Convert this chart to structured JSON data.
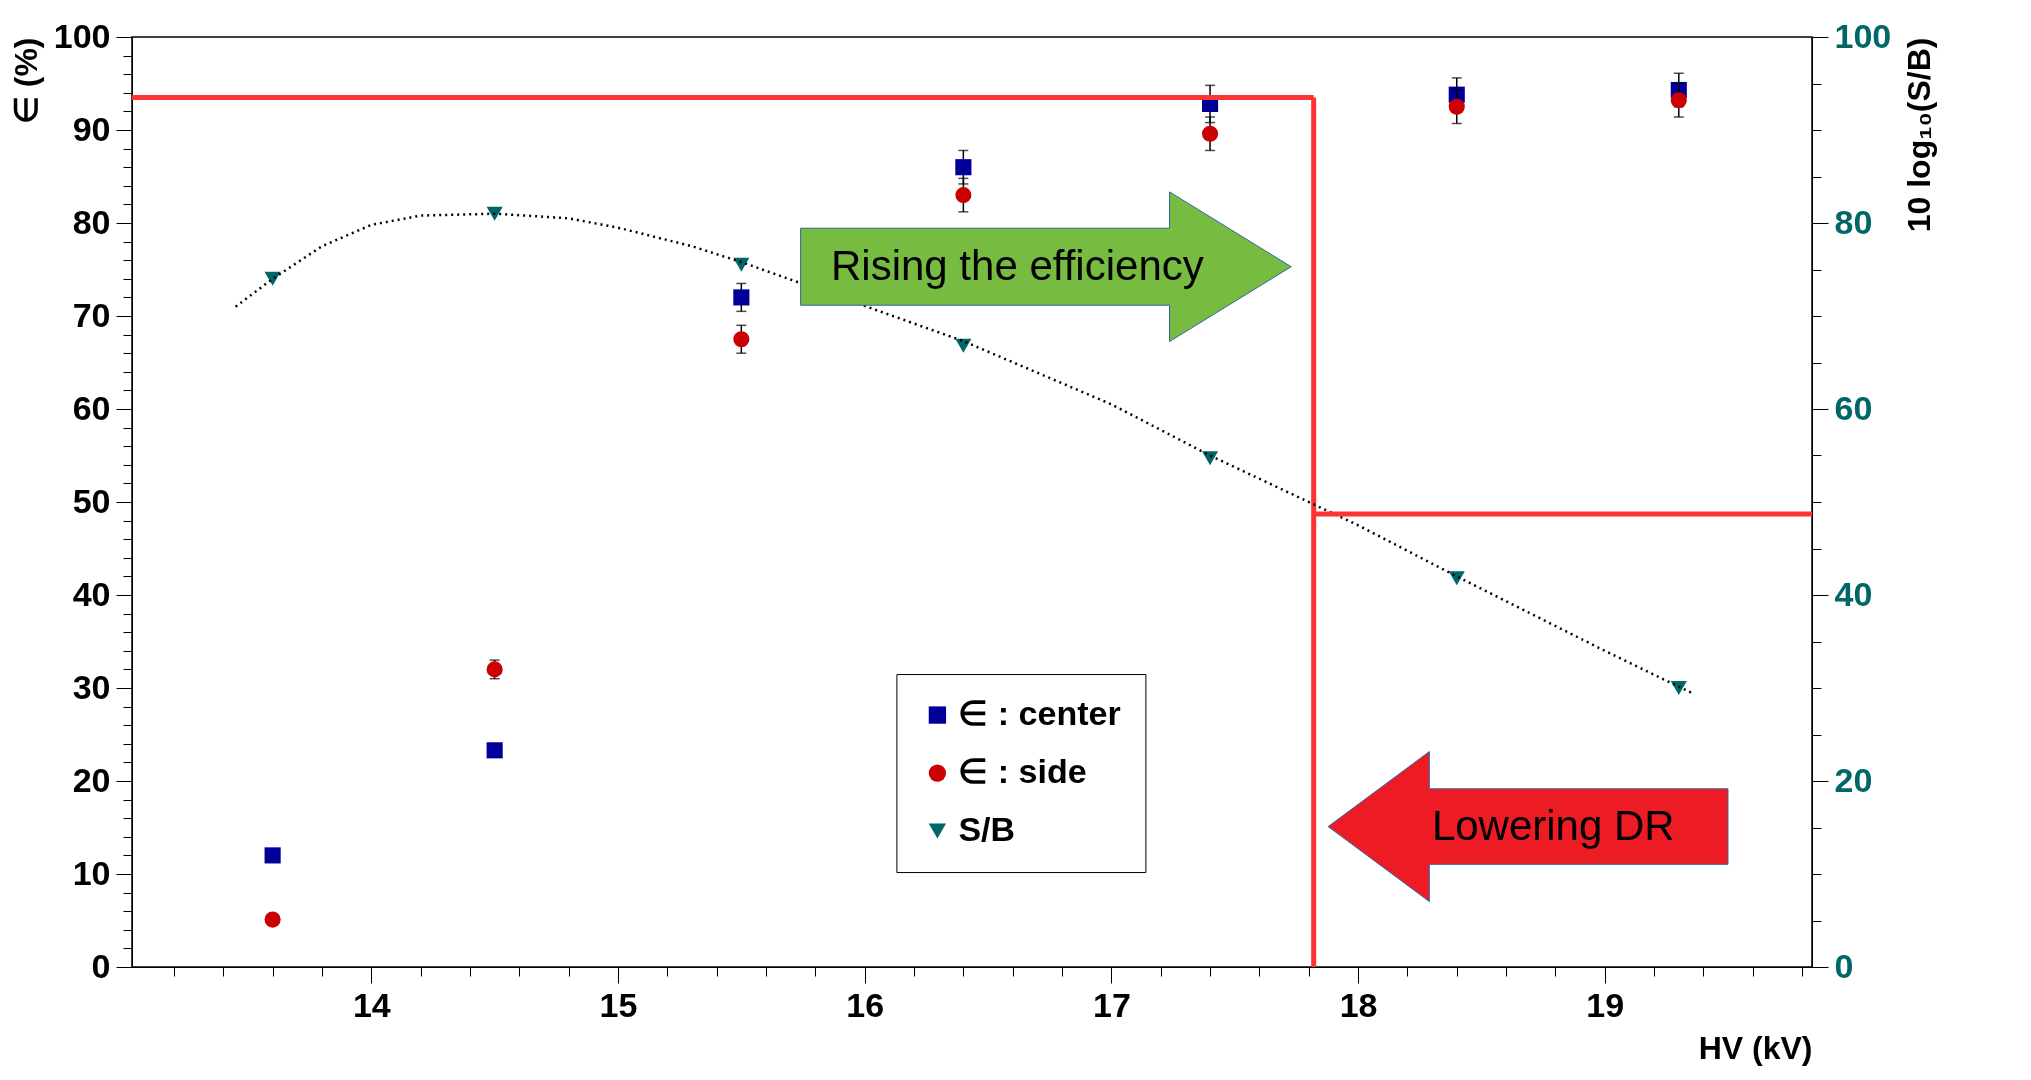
{
  "chart_data": {
    "type": "scatter",
    "xlabel": "HV (kV)",
    "ylabel": "∈ (%)",
    "y2label": "10 log₁₀(S/B)",
    "x": [
      13.6,
      14.5,
      15.5,
      16.4,
      17.4,
      18.4,
      19.3
    ],
    "series": [
      {
        "name": "∈ : center",
        "color": "#000099",
        "marker": "square",
        "values": [
          12,
          23.3,
          72,
          86,
          92.8,
          93.8,
          94.3
        ],
        "errors": [
          null,
          null,
          1.5,
          1.8,
          2,
          1.8,
          1.8
        ]
      },
      {
        "name": "∈ : side",
        "color": "#cc0000",
        "marker": "circle",
        "values": [
          5.1,
          32,
          67.5,
          83,
          89.6,
          92.5,
          93.2
        ],
        "errors": [
          null,
          1,
          1.5,
          1.8,
          1.8,
          1.8,
          1.8
        ]
      },
      {
        "name": "S/B",
        "axis": "y2",
        "color": "#006666",
        "marker": "triangle",
        "values": [
          74,
          81,
          75.5,
          66.8,
          54.7,
          41.8,
          30
        ]
      },
      {
        "type": "line",
        "axis": "y2",
        "color": "#000000",
        "line_style": "dotted",
        "marker": "none",
        "x": [
          13.45,
          13.6,
          13.8,
          14.0,
          14.2,
          14.5,
          14.8,
          15.0,
          15.3,
          15.5,
          16.0,
          16.4,
          17.0,
          17.4,
          18.0,
          18.4,
          19.0,
          19.35
        ],
        "values": [
          71,
          74,
          77.5,
          79.8,
          80.8,
          81,
          80.5,
          79.5,
          77.5,
          75.8,
          null,
          67.3,
          60.5,
          55,
          47.5,
          42,
          34,
          29.5
        ]
      }
    ],
    "xlim": [
      13.03,
      19.84
    ],
    "ylim": [
      0,
      100
    ],
    "y2lim": [
      0,
      100
    ],
    "xticks": [
      {
        "value": 13.2,
        "label": null
      },
      {
        "value": 13.4,
        "label": null
      },
      {
        "value": 13.6,
        "label": null
      },
      {
        "value": 13.8,
        "label": null
      },
      14,
      {
        "value": 14.2,
        "label": null
      },
      {
        "value": 14.4,
        "label": null
      },
      {
        "value": 14.6,
        "label": null
      },
      {
        "value": 14.8,
        "label": null
      },
      15,
      {
        "value": 15.2,
        "label": null
      },
      {
        "value": 15.4,
        "label": null
      },
      {
        "value": 15.6,
        "label": null
      },
      {
        "value": 15.8,
        "label": null
      },
      16,
      {
        "value": 16.2,
        "label": null
      },
      {
        "value": 16.4,
        "label": null
      },
      {
        "value": 16.6,
        "label": null
      },
      {
        "value": 16.8,
        "label": null
      },
      17,
      {
        "value": 17.2,
        "label": null
      },
      {
        "value": 17.4,
        "label": null
      },
      {
        "value": 17.6,
        "label": null
      },
      {
        "value": 17.8,
        "label": null
      },
      18,
      {
        "value": 18.2,
        "label": null
      },
      {
        "value": 18.4,
        "label": null
      },
      {
        "value": 18.6,
        "label": null
      },
      {
        "value": 18.8,
        "label": null
      },
      19,
      {
        "value": 19.2,
        "label": null
      },
      {
        "value": 19.4,
        "label": null
      },
      {
        "value": 19.6,
        "label": null
      },
      {
        "value": 19.8,
        "label": null
      }
    ],
    "yticks": [
      0,
      {
        "value": 2,
        "label": null
      },
      {
        "value": 4,
        "label": null
      },
      {
        "value": 6,
        "label": null
      },
      {
        "value": 8,
        "label": null
      },
      10,
      {
        "value": 12,
        "label": null
      },
      {
        "value": 14,
        "label": null
      },
      {
        "value": 16,
        "label": null
      },
      {
        "value": 18,
        "label": null
      },
      20,
      {
        "value": 22,
        "label": null
      },
      {
        "value": 24,
        "label": null
      },
      {
        "value": 26,
        "label": null
      },
      {
        "value": 28,
        "label": null
      },
      30,
      {
        "value": 32,
        "label": null
      },
      {
        "value": 34,
        "label": null
      },
      {
        "value": 36,
        "label": null
      },
      {
        "value": 38,
        "label": null
      },
      40,
      {
        "value": 42,
        "label": null
      },
      {
        "value": 44,
        "label": null
      },
      {
        "value": 46,
        "label": null
      },
      {
        "value": 48,
        "label": null
      },
      50,
      {
        "value": 52,
        "label": null
      },
      {
        "value": 54,
        "label": null
      },
      {
        "value": 56,
        "label": null
      },
      {
        "value": 58,
        "label": null
      },
      60,
      {
        "value": 62,
        "label": null
      },
      {
        "value": 64,
        "label": null
      },
      {
        "value": 66,
        "label": null
      },
      {
        "value": 68,
        "label": null
      },
      70,
      {
        "value": 72,
        "label": null
      },
      {
        "value": 74,
        "label": null
      },
      {
        "value": 76,
        "label": null
      },
      {
        "value": 78,
        "label": null
      },
      80,
      {
        "value": 82,
        "label": null
      },
      {
        "value": 84,
        "label": null
      },
      {
        "value": 86,
        "label": null
      },
      {
        "value": 88,
        "label": null
      },
      90,
      {
        "value": 92,
        "label": null
      },
      {
        "value": 94,
        "label": null
      },
      {
        "value": 96,
        "label": null
      },
      {
        "value": 98,
        "label": null
      },
      100
    ],
    "y2ticks": [
      0,
      {
        "value": 5,
        "label": null
      },
      {
        "value": 10,
        "label": null
      },
      {
        "value": 15,
        "label": null
      },
      20,
      {
        "value": 25,
        "label": null
      },
      {
        "value": 30,
        "label": null
      },
      {
        "value": 35,
        "label": null
      },
      40,
      {
        "value": 45,
        "label": null
      },
      {
        "value": 50,
        "label": null
      },
      {
        "value": 55,
        "label": null
      },
      60,
      {
        "value": 65,
        "label": null
      },
      {
        "value": 70,
        "label": null
      },
      {
        "value": 75,
        "label": null
      },
      80,
      {
        "value": 85,
        "label": null
      },
      {
        "value": 90,
        "label": null
      },
      {
        "value": 95,
        "label": null
      },
      100
    ],
    "ref_lines": [
      {
        "axis": "y",
        "value": 93.5,
        "color": "#ff3333"
      },
      {
        "axis": "x",
        "value": 17.82,
        "color": "#ff3333"
      },
      {
        "axis": "y2",
        "value": 48.7,
        "color": "#ff3333"
      }
    ],
    "annotations": [
      "Rising the efficiency",
      "Lowering DR"
    ],
    "grid": false,
    "legend": "bottom"
  }
}
